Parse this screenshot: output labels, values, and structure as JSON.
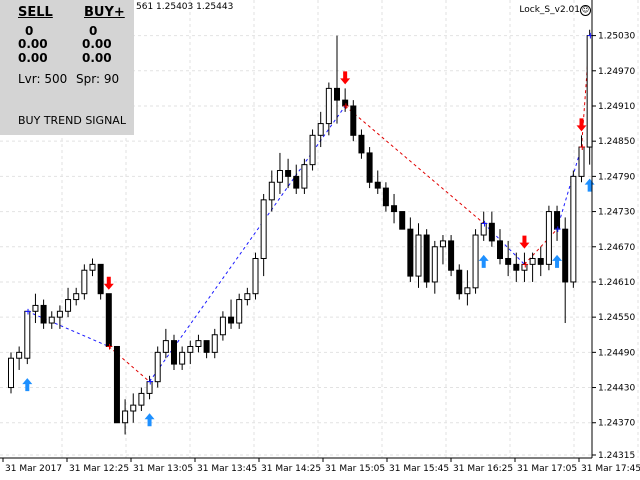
{
  "window": {
    "title_fragment": "561 1.25403 1.25443",
    "indicator_name": "Lock_S_v2.01"
  },
  "panel": {
    "sell_header": "SELL",
    "buy_header": "BUY+",
    "sell_values": [
      "0",
      "0.00",
      "0.00"
    ],
    "buy_values": [
      "0",
      "0.00",
      "0.00"
    ],
    "leverage": "Lvr: 500",
    "spread": "Spr: 90",
    "signal": "BUY TREND SIGNAL"
  },
  "chart_data": {
    "type": "candlestick",
    "price_axis": [
      "1.25030",
      "1.24970",
      "1.24910",
      "1.24850",
      "1.24790",
      "1.24730",
      "1.24670",
      "1.24610",
      "1.24550",
      "1.24490",
      "1.24430",
      "1.24370",
      "1.24315"
    ],
    "ylim": [
      1.24315,
      1.2506
    ],
    "time_axis": [
      "31 Mar 2017",
      "31 Mar 12:25",
      "31 Mar 13:05",
      "31 Mar 13:45",
      "31 Mar 14:25",
      "31 Mar 15:05",
      "31 Mar 15:45",
      "31 Mar 16:25",
      "31 Mar 17:05",
      "31 Mar 17:45"
    ],
    "candles": [
      {
        "o": 1.2443,
        "h": 1.2449,
        "l": 1.2442,
        "c": 1.2448
      },
      {
        "o": 1.2448,
        "h": 1.245,
        "l": 1.2446,
        "c": 1.2449
      },
      {
        "o": 1.2448,
        "h": 1.2456,
        "l": 1.2447,
        "c": 1.2456
      },
      {
        "o": 1.2456,
        "h": 1.2459,
        "l": 1.2454,
        "c": 1.2457
      },
      {
        "o": 1.2457,
        "h": 1.2458,
        "l": 1.2453,
        "c": 1.2454
      },
      {
        "o": 1.2454,
        "h": 1.2456,
        "l": 1.2453,
        "c": 1.2455
      },
      {
        "o": 1.2455,
        "h": 1.2457,
        "l": 1.2453,
        "c": 1.2456
      },
      {
        "o": 1.2456,
        "h": 1.246,
        "l": 1.2455,
        "c": 1.2458
      },
      {
        "o": 1.2458,
        "h": 1.246,
        "l": 1.2457,
        "c": 1.2459
      },
      {
        "o": 1.2459,
        "h": 1.2464,
        "l": 1.2458,
        "c": 1.2463
      },
      {
        "o": 1.2463,
        "h": 1.2465,
        "l": 1.2462,
        "c": 1.2464
      },
      {
        "o": 1.2464,
        "h": 1.2464,
        "l": 1.2458,
        "c": 1.2459
      },
      {
        "o": 1.2459,
        "h": 1.2459,
        "l": 1.245,
        "c": 1.245
      },
      {
        "o": 1.245,
        "h": 1.245,
        "l": 1.2437,
        "c": 1.2437
      },
      {
        "o": 1.2437,
        "h": 1.2441,
        "l": 1.2435,
        "c": 1.2439
      },
      {
        "o": 1.2439,
        "h": 1.2442,
        "l": 1.2437,
        "c": 1.244
      },
      {
        "o": 1.244,
        "h": 1.2443,
        "l": 1.2439,
        "c": 1.2442
      },
      {
        "o": 1.2442,
        "h": 1.2445,
        "l": 1.2441,
        "c": 1.2444
      },
      {
        "o": 1.2444,
        "h": 1.245,
        "l": 1.2443,
        "c": 1.2449
      },
      {
        "o": 1.2449,
        "h": 1.2453,
        "l": 1.2448,
        "c": 1.2451
      },
      {
        "o": 1.2451,
        "h": 1.2452,
        "l": 1.2446,
        "c": 1.2447
      },
      {
        "o": 1.2447,
        "h": 1.245,
        "l": 1.2446,
        "c": 1.2449
      },
      {
        "o": 1.2449,
        "h": 1.2451,
        "l": 1.2447,
        "c": 1.245
      },
      {
        "o": 1.245,
        "h": 1.2452,
        "l": 1.2449,
        "c": 1.2451
      },
      {
        "o": 1.2451,
        "h": 1.2451,
        "l": 1.2448,
        "c": 1.2449
      },
      {
        "o": 1.2449,
        "h": 1.2453,
        "l": 1.2448,
        "c": 1.2452
      },
      {
        "o": 1.2452,
        "h": 1.2456,
        "l": 1.2451,
        "c": 1.2455
      },
      {
        "o": 1.2455,
        "h": 1.2458,
        "l": 1.2453,
        "c": 1.2454
      },
      {
        "o": 1.2454,
        "h": 1.2459,
        "l": 1.2453,
        "c": 1.2458
      },
      {
        "o": 1.2458,
        "h": 1.246,
        "l": 1.2457,
        "c": 1.2459
      },
      {
        "o": 1.2459,
        "h": 1.2466,
        "l": 1.2458,
        "c": 1.2465
      },
      {
        "o": 1.2465,
        "h": 1.2476,
        "l": 1.2462,
        "c": 1.2475
      },
      {
        "o": 1.2475,
        "h": 1.248,
        "l": 1.2473,
        "c": 1.2478
      },
      {
        "o": 1.2478,
        "h": 1.2483,
        "l": 1.2476,
        "c": 1.248
      },
      {
        "o": 1.248,
        "h": 1.2482,
        "l": 1.2477,
        "c": 1.2479
      },
      {
        "o": 1.2479,
        "h": 1.2481,
        "l": 1.2476,
        "c": 1.2477
      },
      {
        "o": 1.2477,
        "h": 1.2482,
        "l": 1.2476,
        "c": 1.2481
      },
      {
        "o": 1.2481,
        "h": 1.2487,
        "l": 1.248,
        "c": 1.2486
      },
      {
        "o": 1.2486,
        "h": 1.249,
        "l": 1.2484,
        "c": 1.2488
      },
      {
        "o": 1.2488,
        "h": 1.2495,
        "l": 1.2486,
        "c": 1.2494
      },
      {
        "o": 1.2494,
        "h": 1.2503,
        "l": 1.2488,
        "c": 1.2492
      },
      {
        "o": 1.2492,
        "h": 1.2494,
        "l": 1.249,
        "c": 1.2491
      },
      {
        "o": 1.2491,
        "h": 1.2492,
        "l": 1.2485,
        "c": 1.2486
      },
      {
        "o": 1.2486,
        "h": 1.2487,
        "l": 1.2482,
        "c": 1.2483
      },
      {
        "o": 1.2483,
        "h": 1.2484,
        "l": 1.2477,
        "c": 1.2478
      },
      {
        "o": 1.2478,
        "h": 1.248,
        "l": 1.2476,
        "c": 1.2477
      },
      {
        "o": 1.2477,
        "h": 1.2478,
        "l": 1.2473,
        "c": 1.2474
      },
      {
        "o": 1.2474,
        "h": 1.2476,
        "l": 1.2471,
        "c": 1.2473
      },
      {
        "o": 1.2473,
        "h": 1.2473,
        "l": 1.247,
        "c": 1.247
      },
      {
        "o": 1.247,
        "h": 1.2472,
        "l": 1.2461,
        "c": 1.2462
      },
      {
        "o": 1.2462,
        "h": 1.2471,
        "l": 1.246,
        "c": 1.2469
      },
      {
        "o": 1.2469,
        "h": 1.247,
        "l": 1.246,
        "c": 1.2461
      },
      {
        "o": 1.2461,
        "h": 1.2468,
        "l": 1.2459,
        "c": 1.2467
      },
      {
        "o": 1.2467,
        "h": 1.2469,
        "l": 1.2464,
        "c": 1.2468
      },
      {
        "o": 1.2468,
        "h": 1.2469,
        "l": 1.2462,
        "c": 1.2463
      },
      {
        "o": 1.2463,
        "h": 1.2464,
        "l": 1.2458,
        "c": 1.2459
      },
      {
        "o": 1.2459,
        "h": 1.2463,
        "l": 1.2457,
        "c": 1.246
      },
      {
        "o": 1.246,
        "h": 1.247,
        "l": 1.2459,
        "c": 1.2469
      },
      {
        "o": 1.2469,
        "h": 1.2473,
        "l": 1.2468,
        "c": 1.2471
      },
      {
        "o": 1.2471,
        "h": 1.2473,
        "l": 1.2467,
        "c": 1.2468
      },
      {
        "o": 1.2468,
        "h": 1.247,
        "l": 1.2464,
        "c": 1.2465
      },
      {
        "o": 1.2465,
        "h": 1.2468,
        "l": 1.2462,
        "c": 1.2464
      },
      {
        "o": 1.2464,
        "h": 1.2466,
        "l": 1.2461,
        "c": 1.2463
      },
      {
        "o": 1.2463,
        "h": 1.2466,
        "l": 1.2461,
        "c": 1.2464
      },
      {
        "o": 1.2464,
        "h": 1.2466,
        "l": 1.2461,
        "c": 1.2465
      },
      {
        "o": 1.2465,
        "h": 1.2467,
        "l": 1.2462,
        "c": 1.2464
      },
      {
        "o": 1.2464,
        "h": 1.2474,
        "l": 1.2463,
        "c": 1.2473
      },
      {
        "o": 1.2473,
        "h": 1.2474,
        "l": 1.2468,
        "c": 1.247
      },
      {
        "o": 1.247,
        "h": 1.2472,
        "l": 1.2454,
        "c": 1.2461
      },
      {
        "o": 1.2461,
        "h": 1.248,
        "l": 1.246,
        "c": 1.2479
      },
      {
        "o": 1.2479,
        "h": 1.2486,
        "l": 1.2478,
        "c": 1.2484
      },
      {
        "o": 1.2484,
        "h": 1.2504,
        "l": 1.2481,
        "c": 1.2503
      }
    ],
    "signals": [
      {
        "type": "buy",
        "candle": 2
      },
      {
        "type": "sell",
        "candle": 12
      },
      {
        "type": "buy",
        "candle": 17
      },
      {
        "type": "sell",
        "candle": 41
      },
      {
        "type": "buy",
        "candle": 58
      },
      {
        "type": "sell",
        "candle": 63
      },
      {
        "type": "buy",
        "candle": 67
      },
      {
        "type": "sell",
        "candle": 70
      },
      {
        "type": "buy",
        "candle": 71
      }
    ],
    "buy_line_color": "#1a1aff",
    "sell_line_color": "#e00000",
    "buy_arrow_color": "#1e90ff",
    "sell_arrow_color": "#ff0000",
    "grid": true
  }
}
